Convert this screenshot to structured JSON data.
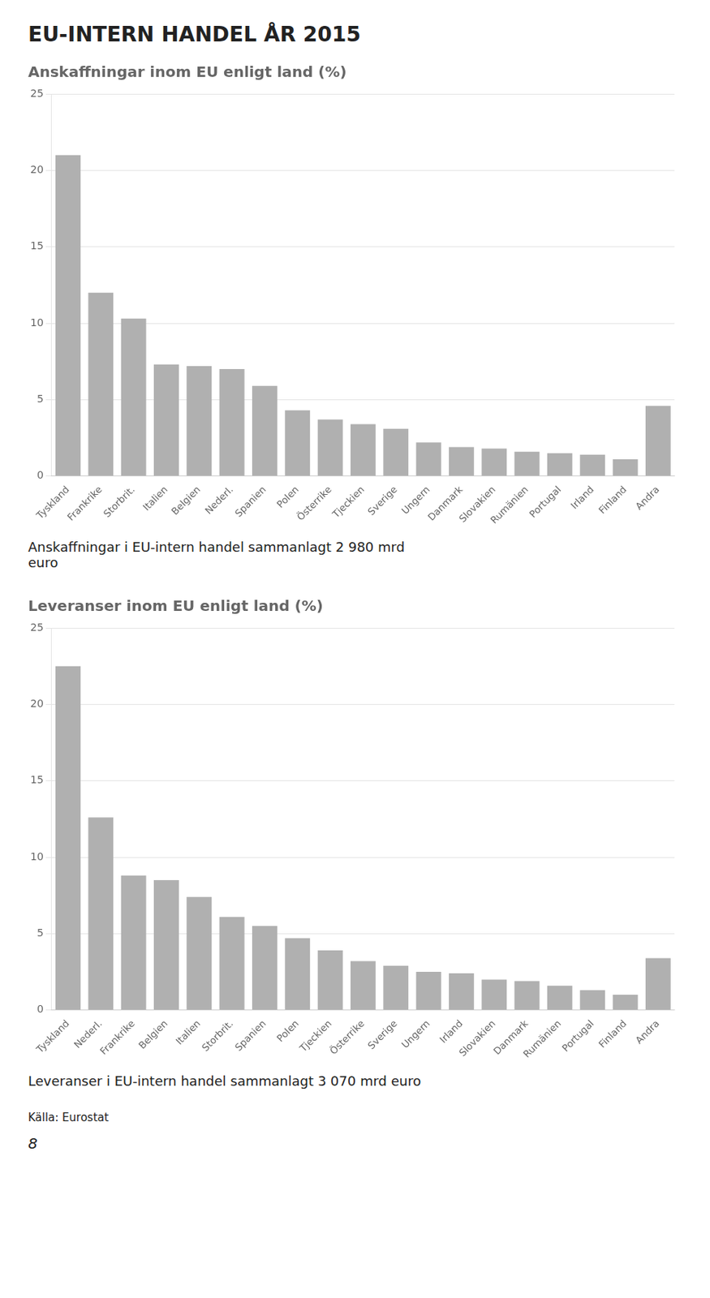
{
  "title": "EU-INTERN HANDEL ÅR 2015",
  "annotations": [
    "Källa: Eurostat",
    "8"
  ],
  "chart_data": [
    {
      "type": "bar",
      "title": "Anskaffningar inom EU enligt land (%)",
      "categories": [
        "Tyskland",
        "Frankrike",
        "Storbrit.",
        "Italien",
        "Belgien",
        "Nederl.",
        "Spanien",
        "Polen",
        "Österrike",
        "Tjeckien",
        "Sverige",
        "Ungern",
        "Danmark",
        "Slovakien",
        "Rumänien",
        "Portugal",
        "Irland",
        "Finland",
        "Andra"
      ],
      "values": [
        21.0,
        12.0,
        10.3,
        7.3,
        7.2,
        7.0,
        5.9,
        4.3,
        3.7,
        3.4,
        3.1,
        2.2,
        1.9,
        1.8,
        1.6,
        1.5,
        1.4,
        1.1,
        4.6
      ],
      "color": "#b0b0b0",
      "ylim": [
        0,
        25
      ],
      "yticks": [
        0,
        5,
        10,
        15,
        20,
        25
      ],
      "grid": true,
      "annotations": [
        "Anskaffningar i EU-intern handel sammanlagt 2 980 mrd\neuro"
      ]
    },
    {
      "type": "bar",
      "title": "Leveranser inom EU enligt land (%)",
      "categories": [
        "Tyskland",
        "Nederl.",
        "Frankrike",
        "Belgien",
        "Italien",
        "Storbrit.",
        "Spanien",
        "Polen",
        "Tjeckien",
        "Österrike",
        "Sverige",
        "Ungern",
        "Irland",
        "Slovakien",
        "Danmark",
        "Rumänien",
        "Portugal",
        "Finland",
        "Andra"
      ],
      "values": [
        22.5,
        12.6,
        8.8,
        8.5,
        7.4,
        6.1,
        5.5,
        4.7,
        3.9,
        3.2,
        2.9,
        2.5,
        2.4,
        2.0,
        1.9,
        1.6,
        1.3,
        1.0,
        3.4
      ],
      "color": "#b0b0b0",
      "ylim": [
        0,
        25
      ],
      "yticks": [
        0,
        5,
        10,
        15,
        20,
        25
      ],
      "grid": true,
      "annotations": [
        "Leveranser i EU-intern handel sammanlagt 3 070 mrd euro"
      ]
    }
  ]
}
